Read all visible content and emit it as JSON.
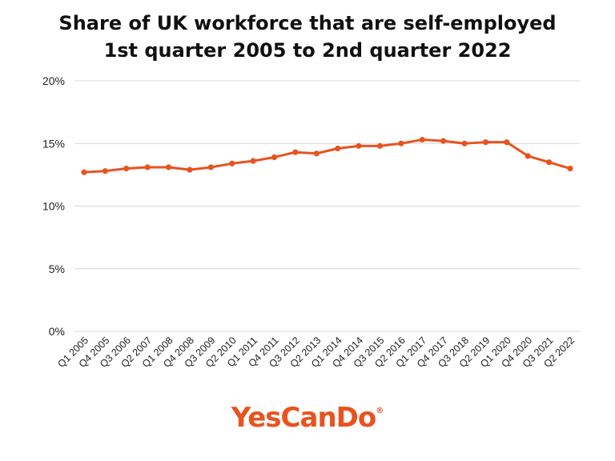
{
  "title_line1": "Share of UK workforce that are self-employed",
  "title_line2": "1st quarter 2005 to 2nd quarter 2022",
  "brand": "YesCanDo",
  "brand_mark": "®",
  "colors": {
    "series": "#e8531f",
    "brand": "#e8531f",
    "grid": "#d9d9d9"
  },
  "chart_data": {
    "type": "line",
    "title": "Share of UK workforce that are self-employed 1st quarter 2005 to 2nd quarter 2022",
    "categories": [
      "Q1 2005",
      "Q4 2005",
      "Q3 2006",
      "Q2 2007",
      "Q1 2008",
      "Q4 2008",
      "Q3 2009",
      "Q2 2010",
      "Q1 2011",
      "Q4 2011",
      "Q3 2012",
      "Q2 2013",
      "Q1 2014",
      "Q4 2014",
      "Q3 2015",
      "Q2 2016",
      "Q1 2017",
      "Q4 2017",
      "Q3 2018",
      "Q2 2019",
      "Q1 2020",
      "Q4 2020",
      "Q3 2021",
      "Q2 2022"
    ],
    "series": [
      {
        "values": [
          12.7,
          12.8,
          13.0,
          13.1,
          13.1,
          12.9,
          13.1,
          13.4,
          13.6,
          13.9,
          14.3,
          14.2,
          14.6,
          14.8,
          14.8,
          15.0,
          15.3,
          15.2,
          15.0,
          15.1,
          15.1,
          14.0,
          13.5,
          13.0
        ]
      }
    ],
    "y_ticks": [
      "0%",
      "5%",
      "10%",
      "15%",
      "20%"
    ],
    "ylim": [
      0,
      20
    ],
    "grid": true,
    "legend": "none"
  }
}
